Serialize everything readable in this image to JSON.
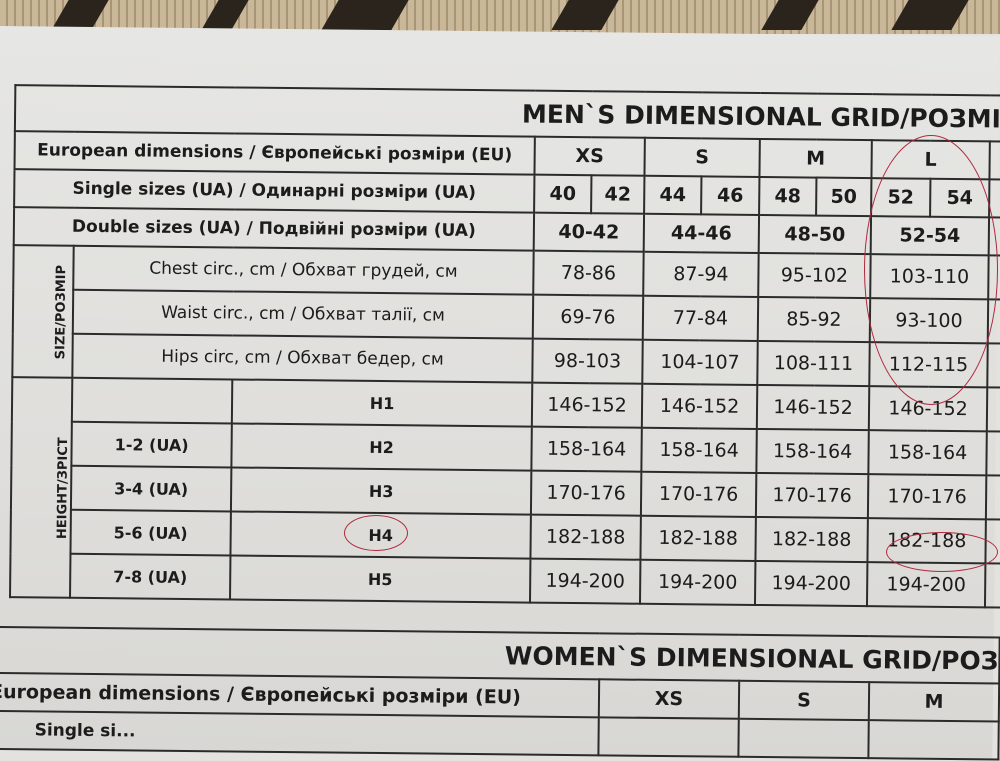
{
  "men": {
    "title": "MEN`S DIMENSIONAL GRID/РОЗМІР",
    "eu_label": "European dimensions / Європейські розміри (EU)",
    "single_label": "Single sizes (UA) / Одинарні розміри (UA)",
    "double_label": "Double sizes (UA) / Подвійні розміри (UA)",
    "eu_sizes": [
      "XS",
      "S",
      "M",
      "L"
    ],
    "single_sizes": [
      "40",
      "42",
      "44",
      "46",
      "48",
      "50",
      "52",
      "54"
    ],
    "double_sizes": [
      "40-42",
      "44-46",
      "48-50",
      "52-54"
    ],
    "size_group_label": "SIZE/РОЗМІР",
    "size_rows": [
      {
        "label": "Chest circ., cm / Обхват грудей, см",
        "values": [
          "78-86",
          "87-94",
          "95-102",
          "103-110"
        ]
      },
      {
        "label": "Waist circ., cm / Обхват талії, см",
        "values": [
          "69-76",
          "77-84",
          "85-92",
          "93-100"
        ]
      },
      {
        "label": "Hips circ, cm / Обхват бедер, см",
        "values": [
          "98-103",
          "104-107",
          "108-111",
          "112-115"
        ]
      }
    ],
    "height_group_label": "HEIGHT/ЗРІСТ",
    "height_rows": [
      {
        "ua": "",
        "h": "H1",
        "values": [
          "146-152",
          "146-152",
          "146-152",
          "146-152"
        ]
      },
      {
        "ua": "1-2 (UA)",
        "h": "H2",
        "values": [
          "158-164",
          "158-164",
          "158-164",
          "158-164"
        ]
      },
      {
        "ua": "3-4 (UA)",
        "h": "H3",
        "values": [
          "170-176",
          "170-176",
          "170-176",
          "170-176"
        ]
      },
      {
        "ua": "5-6 (UA)",
        "h": "H4",
        "values": [
          "182-188",
          "182-188",
          "182-188",
          "182-188"
        ]
      },
      {
        "ua": "7-8 (UA)",
        "h": "H5",
        "values": [
          "194-200",
          "194-200",
          "194-200",
          "194-200"
        ]
      }
    ]
  },
  "women": {
    "title": "WOMEN`S DIMENSIONAL GRID/РОЗ",
    "eu_label": "European dimensions / Європейські розміри (EU)",
    "eu_sizes": [
      "XS",
      "S",
      "M"
    ],
    "single_label": "Single si..."
  },
  "annotation_color": "#b0283c"
}
